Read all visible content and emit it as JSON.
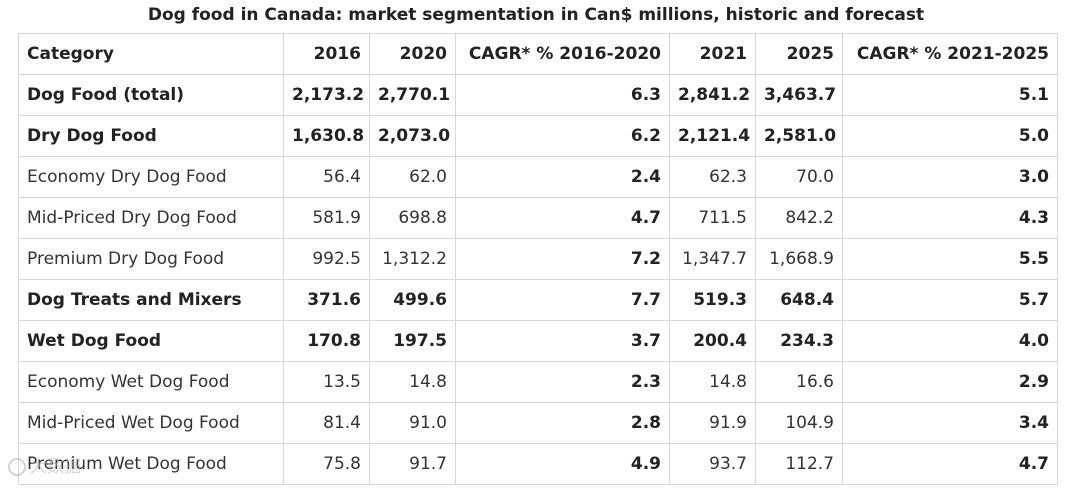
{
  "title": "Dog food in Canada: market segmentation in Can$ millions, historic and forecast",
  "table": {
    "headers": [
      "Category",
      "2016",
      "2020",
      "CAGR* % 2016-2020",
      "2021",
      "2025",
      "CAGR* % 2021-2025"
    ],
    "rows": [
      {
        "bold": true,
        "cells": [
          "Dog Food (total)",
          "2,173.2",
          "2,770.1",
          "6.3",
          "2,841.2",
          "3,463.7",
          "5.1"
        ]
      },
      {
        "bold": true,
        "cells": [
          "Dry Dog Food",
          "1,630.8",
          "2,073.0",
          "6.2",
          "2,121.4",
          "2,581.0",
          "5.0"
        ]
      },
      {
        "bold": false,
        "cells": [
          "Economy Dry Dog Food",
          "56.4",
          "62.0",
          "2.4",
          "62.3",
          "70.0",
          "3.0"
        ]
      },
      {
        "bold": false,
        "cells": [
          "Mid-Priced Dry Dog Food",
          "581.9",
          "698.8",
          "4.7",
          "711.5",
          "842.2",
          "4.3"
        ]
      },
      {
        "bold": false,
        "cells": [
          "Premium Dry Dog Food",
          "992.5",
          "1,312.2",
          "7.2",
          "1,347.7",
          "1,668.9",
          "5.5"
        ]
      },
      {
        "bold": true,
        "cells": [
          "Dog Treats and Mixers",
          "371.6",
          "499.6",
          "7.7",
          "519.3",
          "648.4",
          "5.7"
        ]
      },
      {
        "bold": true,
        "cells": [
          "Wet Dog Food",
          "170.8",
          "197.5",
          "3.7",
          "200.4",
          "234.3",
          "4.0"
        ]
      },
      {
        "bold": false,
        "cells": [
          "Economy Wet Dog Food",
          "13.5",
          "14.8",
          "2.3",
          "14.8",
          "16.6",
          "2.9"
        ]
      },
      {
        "bold": false,
        "cells": [
          "Mid-Priced Wet Dog Food",
          "81.4",
          "91.0",
          "2.8",
          "91.9",
          "104.9",
          "3.4"
        ]
      },
      {
        "bold": false,
        "cells": [
          "Premium Wet Dog Food",
          "75.8",
          "91.7",
          "4.9",
          "93.7",
          "112.7",
          "4.7"
        ]
      }
    ]
  },
  "watermark": {
    "text": "大数据",
    "icon": "watermark-logo-icon"
  }
}
